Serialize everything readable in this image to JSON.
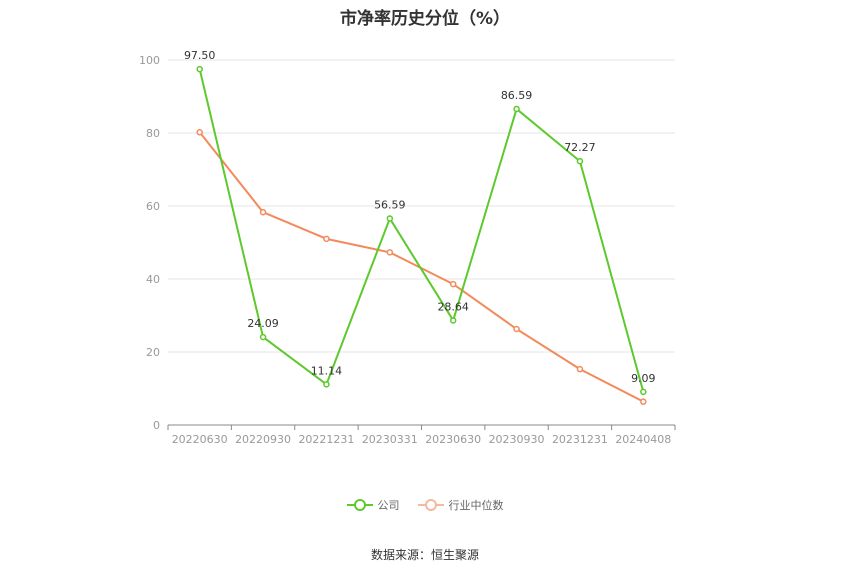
{
  "chart_data": {
    "type": "line",
    "title": "市净率历史分位（%）",
    "categories": [
      "20220630",
      "20220930",
      "20221231",
      "20230331",
      "20230630",
      "20230930",
      "20231231",
      "20240408"
    ],
    "series": [
      {
        "name": "公司",
        "color": "#5cc92c",
        "values": [
          97.5,
          24.09,
          11.14,
          56.59,
          28.64,
          86.59,
          72.27,
          9.09
        ],
        "labels": [
          "97.50",
          "24.09",
          "11.14",
          "56.59",
          "28.64",
          "86.59",
          "72.27",
          "9.09"
        ]
      },
      {
        "name": "行业中位数",
        "color": "#f28b5c",
        "values": [
          80.2,
          58.3,
          51.0,
          47.3,
          38.6,
          26.3,
          15.3,
          6.4
        ]
      }
    ],
    "ylim": [
      0,
      100
    ],
    "yticks": [
      "0",
      "20",
      "40",
      "60",
      "80",
      "100"
    ],
    "grid": true,
    "legend_position": "bottom"
  },
  "source": "数据来源：恒生聚源"
}
